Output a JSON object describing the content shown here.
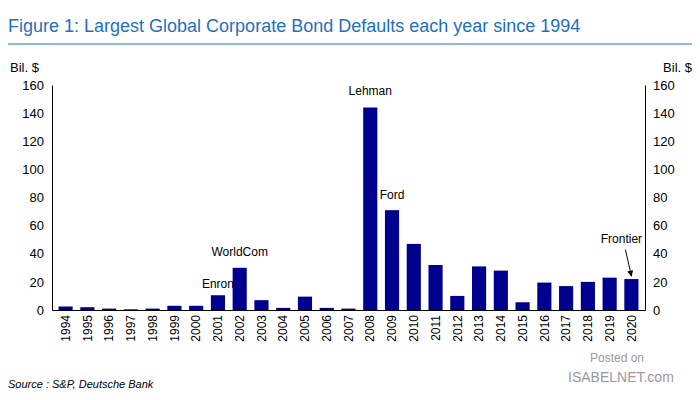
{
  "chart_data": {
    "type": "bar",
    "title": "Figure 1: Largest Global Corporate Bond Defaults each year since 1994",
    "ylabel": "Bil. $",
    "y2label": "Bil. $",
    "categories": [
      "1994",
      "1995",
      "1996",
      "1997",
      "1998",
      "1999",
      "2000",
      "2001",
      "2002",
      "2003",
      "2004",
      "2005",
      "2006",
      "2007",
      "2008",
      "2009",
      "2010",
      "2011",
      "2012",
      "2013",
      "2014",
      "2015",
      "2016",
      "2017",
      "2018",
      "2019",
      "2020"
    ],
    "values": [
      2.5,
      2,
      1,
      0.5,
      1,
      3,
      3,
      10.5,
      30,
      7,
      1.5,
      9.5,
      1.5,
      1,
      144,
      71,
      47,
      32,
      10,
      31,
      28,
      5.5,
      19.5,
      17,
      20,
      23,
      22
    ],
    "color": "#00008f",
    "ylim": [
      0,
      160
    ],
    "yticks": [
      0,
      20,
      40,
      60,
      80,
      100,
      120,
      140,
      160
    ],
    "grid": false,
    "annotations": [
      {
        "text": "Enron",
        "x": "2001",
        "y": 18
      },
      {
        "text": "WorldCom",
        "x": "2002",
        "y": 40.5
      },
      {
        "text": "Lehman",
        "x": "2008",
        "y": 155
      },
      {
        "text": "Ford",
        "x": "2009",
        "y": 81
      },
      {
        "text": "Frontier",
        "x": "2020",
        "y": 50
      }
    ],
    "source": "Source : S&P, Deutsche Bank",
    "watermark": [
      "Posted on",
      "ISABELNET.com"
    ]
  }
}
